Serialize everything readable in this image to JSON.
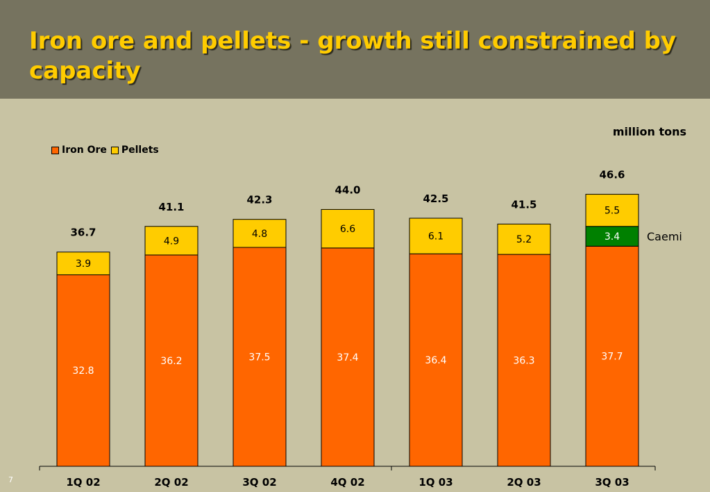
{
  "title": "Iron ore and pellets - growth still constrained by capacity",
  "units_label": "million tons",
  "page_number": "7",
  "colors": {
    "iron_ore": "#ff6600",
    "pellets": "#ffcc00",
    "caemi": "#008000",
    "background": "#c8c3a3",
    "title_bar": "#76735f",
    "title_text": "#ffcc00"
  },
  "chart_data": {
    "type": "bar",
    "stacked": true,
    "categories": [
      "1Q 02",
      "2Q 02",
      "3Q 02",
      "4Q 02",
      "1Q 03",
      "2Q 03",
      "3Q 03"
    ],
    "series": [
      {
        "name": "Iron Ore",
        "values": [
          32.8,
          36.2,
          37.5,
          37.4,
          36.4,
          36.3,
          37.7
        ]
      },
      {
        "name": "Caemi",
        "values": [
          null,
          null,
          null,
          null,
          null,
          null,
          3.4
        ]
      },
      {
        "name": "Pellets",
        "values": [
          3.9,
          4.9,
          4.8,
          6.6,
          6.1,
          5.2,
          5.5
        ]
      }
    ],
    "totals": [
      "36.7",
      "41.1",
      "42.3",
      "44.0",
      "42.5",
      "41.5",
      "46.6"
    ],
    "legend": [
      "Iron Ore",
      "Pellets"
    ],
    "legend_position": "top-left",
    "annotations": [
      {
        "text": "Caemi",
        "category": "3Q 03",
        "series": "Caemi"
      }
    ],
    "ylim": [
      0,
      46.6
    ],
    "grid": false,
    "xlabel": "",
    "ylabel": ""
  }
}
